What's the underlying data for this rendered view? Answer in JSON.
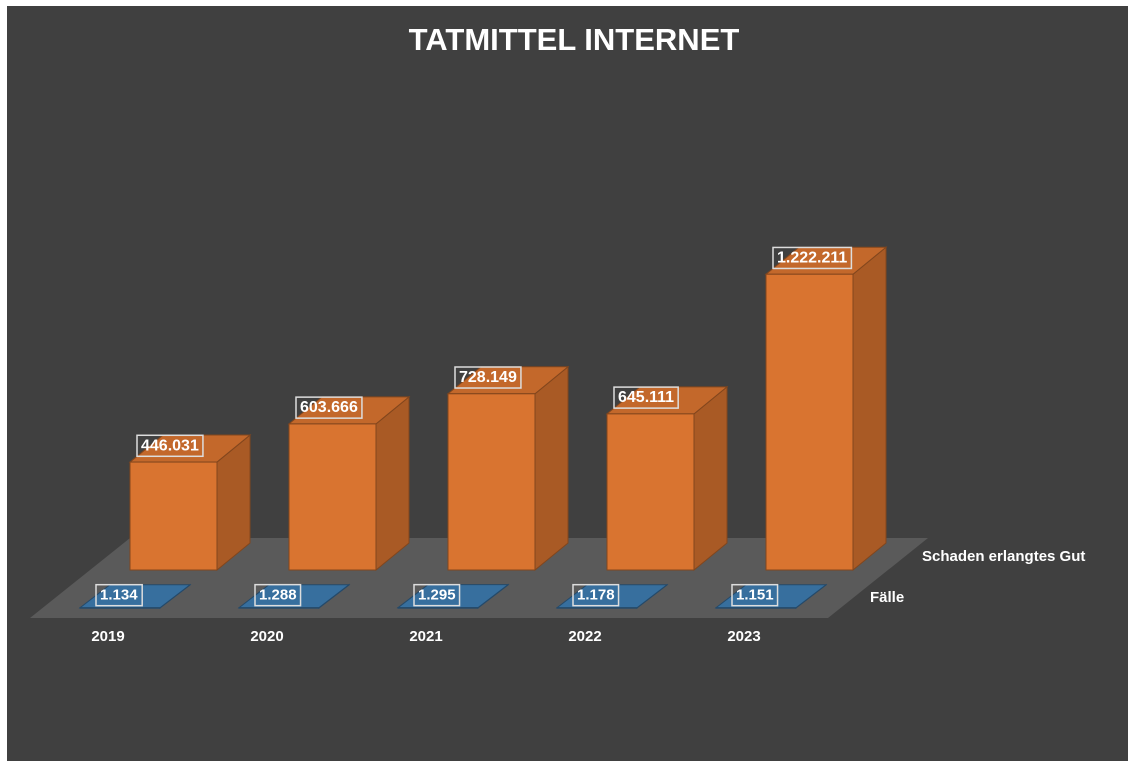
{
  "chart_data": {
    "type": "bar3d",
    "title": "TATMITTEL INTERNET",
    "categories": [
      "2019",
      "2020",
      "2021",
      "2022",
      "2023"
    ],
    "series": [
      {
        "name": "Schaden erlangtes Gut",
        "color": "#d97430",
        "values": [
          446031,
          603666,
          728149,
          645111,
          1222211
        ],
        "value_labels": [
          "446.031",
          "603.666",
          "728.149",
          "645.111",
          "1.222.211"
        ]
      },
      {
        "name": "Fälle",
        "color": "#3d7bb0",
        "values": [
          1134,
          1288,
          1295,
          1178,
          1151
        ],
        "value_labels": [
          "1.134",
          "1.288",
          "1.295",
          "1.178",
          "1.151"
        ]
      }
    ]
  }
}
